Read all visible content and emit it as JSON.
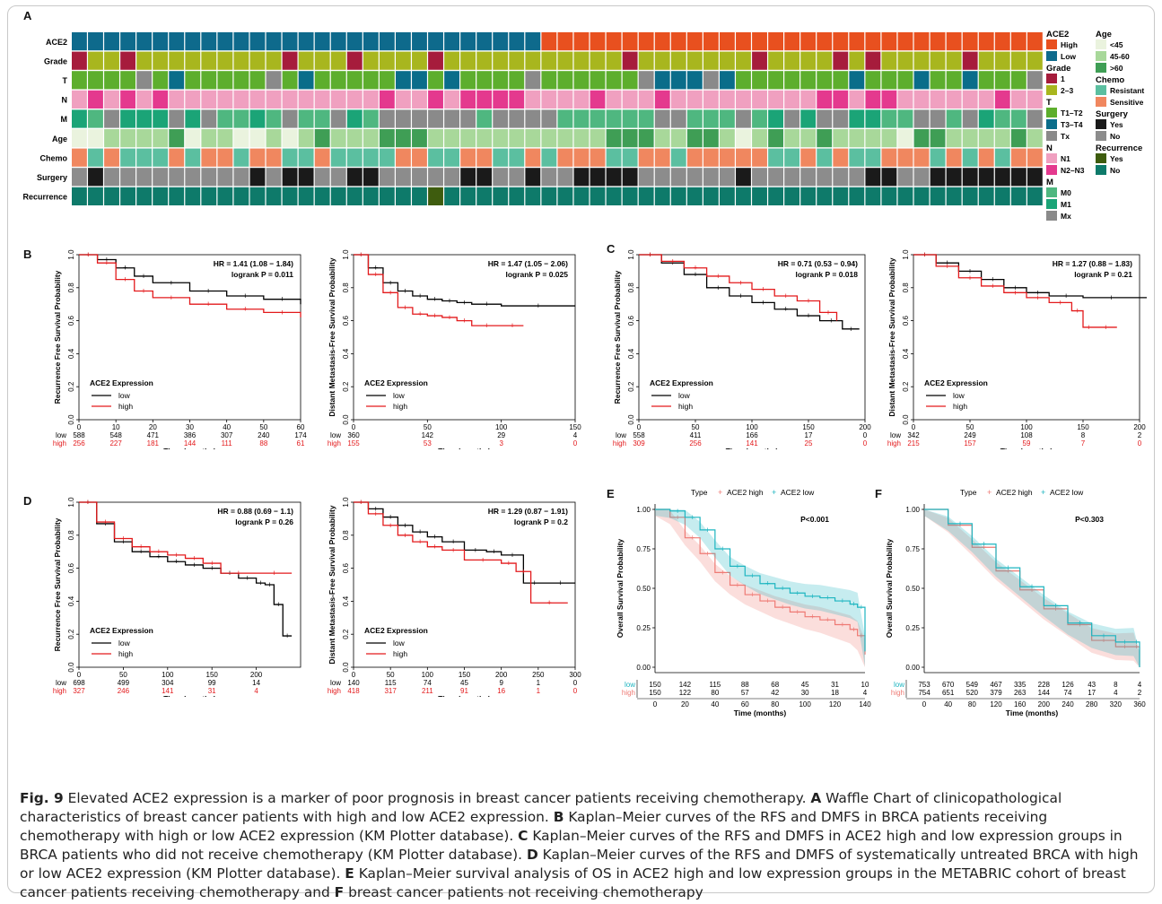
{
  "figure_label": "Fig. 9",
  "caption_parts": [
    {
      "text": " Elevated ACE2 expression is a marker of poor prognosis in breast cancer patients receiving chemotherapy. ",
      "bold": false
    },
    {
      "text": "A",
      "bold": true
    },
    {
      "text": " Waffle Chart of clinicopathological characteristics of breast cancer patients with high and low ACE2 expression. ",
      "bold": false
    },
    {
      "text": "B",
      "bold": true
    },
    {
      "text": " Kaplan–Meier curves of the RFS and DMFS in BRCA patients receiving chemotherapy with high or low ACE2 expression (KM Plotter database). ",
      "bold": false
    },
    {
      "text": "C",
      "bold": true
    },
    {
      "text": " Kaplan–Meier curves of the RFS and DMFS in ACE2 high and low expression groups in BRCA patients who did not receive chemotherapy (KM Plotter database). ",
      "bold": false
    },
    {
      "text": "D",
      "bold": true
    },
    {
      "text": " Kaplan–Meier curves of the RFS and DMFS of systematically untreated BRCA with high or low ACE2 expression (KM Plotter database). ",
      "bold": false
    },
    {
      "text": "E",
      "bold": true
    },
    {
      "text": " Kaplan–Meier survival analysis of OS in ACE2 high and low expression groups in the METABRIC cohort of breast cancer patients receiving chemotherapy and ",
      "bold": false
    },
    {
      "text": "F",
      "bold": true
    },
    {
      "text": " breast cancer patients not receiving chemotherapy",
      "bold": false
    }
  ],
  "panel_letters": {
    "A": "A",
    "B": "B",
    "C": "C",
    "D": "D",
    "E": "E",
    "F": "F"
  },
  "waffle": {
    "rows": [
      "ACE2",
      "Grade",
      "T",
      "N",
      "M",
      "Age",
      "Chemo",
      "Surgery",
      "Recurrence"
    ],
    "n_columns": 60,
    "legend": [
      {
        "title": "ACE2",
        "items": [
          {
            "label": "High",
            "color": "#E8501F"
          },
          {
            "label": "Low",
            "color": "#0E6A8C"
          }
        ]
      },
      {
        "title": "Grade",
        "items": [
          {
            "label": "1",
            "color": "#A61C3C"
          },
          {
            "label": "2–3",
            "color": "#A8B61E"
          }
        ]
      },
      {
        "title": "T",
        "items": [
          {
            "label": "T1–T2",
            "color": "#5DAE2D"
          },
          {
            "label": "T3–T4",
            "color": "#0A6D8A"
          },
          {
            "label": "Tx",
            "color": "#8A8A8A"
          }
        ]
      },
      {
        "title": "N",
        "items": [
          {
            "label": "N1",
            "color": "#F0A0C0"
          },
          {
            "label": "N2–N3",
            "color": "#E4398E"
          }
        ]
      },
      {
        "title": "M",
        "items": [
          {
            "label": "M0",
            "color": "#4FB780"
          },
          {
            "label": "M1",
            "color": "#1BA477"
          },
          {
            "label": "Mx",
            "color": "#8A8A8A"
          }
        ]
      },
      {
        "title": "Age",
        "items": [
          {
            "label": "<45",
            "color": "#EAF3DE"
          },
          {
            "label": "45-60",
            "color": "#A8D89A"
          },
          {
            "label": ">60",
            "color": "#3F9E55"
          }
        ]
      },
      {
        "title": "Chemo",
        "items": [
          {
            "label": "Resistant",
            "color": "#5BBFA0"
          },
          {
            "label": "Sensitive",
            "color": "#F0875F"
          }
        ]
      },
      {
        "title": "Surgery",
        "items": [
          {
            "label": "Yes",
            "color": "#1A1A1A"
          },
          {
            "label": "No",
            "color": "#8C8C8C"
          }
        ]
      },
      {
        "title": "Recurrence",
        "items": [
          {
            "label": "Yes",
            "color": "#3E5C0E"
          },
          {
            "label": "No",
            "color": "#0E7A6A"
          }
        ]
      }
    ]
  },
  "km_legend": {
    "title": "ACE2 Expression",
    "low": "low",
    "high": "high"
  },
  "risk_row_labels": {
    "low": "low",
    "high": "high"
  },
  "chart_data": [
    {
      "id": "B1",
      "type": "line",
      "ylabel": "Recurrence Free Survival Probability",
      "xlabel": "Time (months)",
      "hr": "HR = 1.41 (1.08 − 1.84)",
      "pval": "logrank P = 0.011",
      "xlim": [
        0,
        60
      ],
      "ylim": [
        0,
        1
      ],
      "xticks": [
        0,
        10,
        20,
        30,
        40,
        50,
        60
      ],
      "yticks": [
        0.0,
        0.2,
        0.4,
        0.6,
        0.8,
        1.0
      ],
      "series": [
        {
          "name": "low",
          "x": [
            0,
            5,
            10,
            15,
            20,
            30,
            40,
            50,
            60
          ],
          "y": [
            1.0,
            0.97,
            0.92,
            0.87,
            0.83,
            0.78,
            0.75,
            0.73,
            0.7
          ]
        },
        {
          "name": "high",
          "x": [
            0,
            5,
            10,
            15,
            20,
            30,
            40,
            50,
            60
          ],
          "y": [
            1.0,
            0.95,
            0.85,
            0.78,
            0.74,
            0.7,
            0.67,
            0.65,
            0.62
          ]
        }
      ],
      "risk_ticks": [
        0,
        10,
        20,
        30,
        40,
        50,
        60
      ],
      "risk_low": [
        "588",
        "548",
        "471",
        "386",
        "307",
        "240",
        "174"
      ],
      "risk_high": [
        "256",
        "227",
        "181",
        "144",
        "111",
        "88",
        "61"
      ]
    },
    {
      "id": "B2",
      "type": "line",
      "ylabel": "Distant Metastasis-Free Survival Probability",
      "xlabel": "Time (months)",
      "hr": "HR = 1.47 (1.05 − 2.06)",
      "pval": "logrank P = 0.025",
      "xlim": [
        0,
        150
      ],
      "ylim": [
        0,
        1
      ],
      "xticks": [
        0,
        50,
        100,
        150
      ],
      "yticks": [
        0.0,
        0.2,
        0.4,
        0.6,
        0.8,
        1.0
      ],
      "series": [
        {
          "name": "low",
          "x": [
            0,
            10,
            20,
            30,
            40,
            50,
            60,
            70,
            80,
            100,
            150
          ],
          "y": [
            1.0,
            0.92,
            0.83,
            0.78,
            0.75,
            0.73,
            0.72,
            0.71,
            0.7,
            0.69,
            0.69
          ]
        },
        {
          "name": "high",
          "x": [
            0,
            10,
            20,
            30,
            40,
            50,
            60,
            70,
            80,
            100,
            115
          ],
          "y": [
            1.0,
            0.88,
            0.77,
            0.68,
            0.64,
            0.63,
            0.62,
            0.6,
            0.57,
            0.57,
            0.57
          ]
        }
      ],
      "risk_ticks": [
        0,
        50,
        100,
        150
      ],
      "risk_low": [
        "360",
        "142",
        "29",
        "4"
      ],
      "risk_high": [
        "155",
        "53",
        "3",
        "0"
      ]
    },
    {
      "id": "C1",
      "type": "line",
      "ylabel": "Recurrence Free Survival Probability",
      "xlabel": "Time (months)",
      "hr": "HR = 0.71 (0.53 − 0.94)",
      "pval": "logrank P = 0.018",
      "xlim": [
        0,
        200
      ],
      "ylim": [
        0,
        1
      ],
      "xticks": [
        0,
        50,
        100,
        150,
        200
      ],
      "yticks": [
        0.0,
        0.2,
        0.4,
        0.6,
        0.8,
        1.0
      ],
      "series": [
        {
          "name": "low",
          "x": [
            0,
            20,
            40,
            60,
            80,
            100,
            120,
            140,
            160,
            180,
            195
          ],
          "y": [
            1.0,
            0.95,
            0.88,
            0.8,
            0.75,
            0.71,
            0.67,
            0.63,
            0.6,
            0.55,
            0.55
          ]
        },
        {
          "name": "high",
          "x": [
            0,
            20,
            40,
            60,
            80,
            100,
            120,
            140,
            160,
            175
          ],
          "y": [
            1.0,
            0.96,
            0.92,
            0.87,
            0.83,
            0.79,
            0.75,
            0.72,
            0.65,
            0.6
          ]
        }
      ],
      "risk_ticks": [
        0,
        50,
        100,
        150,
        200
      ],
      "risk_low": [
        "558",
        "411",
        "166",
        "17",
        "0"
      ],
      "risk_high": [
        "309",
        "256",
        "141",
        "25",
        "0"
      ]
    },
    {
      "id": "C2",
      "type": "line",
      "ylabel": "Distant Metastasis-Free Survival Probability",
      "xlabel": "Time (months)",
      "hr": "HR = 1.27 (0.88 − 1.83)",
      "pval": "logrank P = 0.21",
      "xlim": [
        0,
        200
      ],
      "ylim": [
        0,
        1
      ],
      "xticks": [
        0,
        50,
        100,
        150,
        200
      ],
      "yticks": [
        0.0,
        0.2,
        0.4,
        0.6,
        0.8,
        1.0
      ],
      "series": [
        {
          "name": "low",
          "x": [
            0,
            20,
            40,
            60,
            80,
            100,
            120,
            150,
            200,
            215
          ],
          "y": [
            1.0,
            0.95,
            0.9,
            0.85,
            0.8,
            0.77,
            0.75,
            0.74,
            0.74,
            0.74
          ]
        },
        {
          "name": "high",
          "x": [
            0,
            20,
            40,
            60,
            80,
            100,
            120,
            140,
            150,
            160,
            180
          ],
          "y": [
            1.0,
            0.93,
            0.86,
            0.81,
            0.77,
            0.74,
            0.71,
            0.66,
            0.56,
            0.56,
            0.56
          ]
        }
      ],
      "risk_ticks": [
        0,
        50,
        100,
        150,
        200
      ],
      "risk_low": [
        "342",
        "249",
        "108",
        "8",
        "2"
      ],
      "risk_high": [
        "215",
        "157",
        "59",
        "7",
        "0"
      ]
    },
    {
      "id": "D1",
      "type": "line",
      "ylabel": "Recurrence Free Survival Probability",
      "xlabel": "Time (months)",
      "hr": "HR = 0.88 (0.69 − 1.1)",
      "pval": "logrank P = 0.26",
      "xlim": [
        0,
        250
      ],
      "ylim": [
        0,
        1
      ],
      "xticks": [
        0,
        50,
        100,
        150,
        200
      ],
      "yticks": [
        0.0,
        0.2,
        0.4,
        0.6,
        0.8,
        1.0
      ],
      "series": [
        {
          "name": "low",
          "x": [
            0,
            20,
            40,
            60,
            80,
            100,
            120,
            140,
            160,
            180,
            200,
            210,
            220,
            230,
            240
          ],
          "y": [
            1.0,
            0.87,
            0.76,
            0.7,
            0.67,
            0.64,
            0.62,
            0.6,
            0.57,
            0.54,
            0.51,
            0.5,
            0.38,
            0.19,
            0.19
          ]
        },
        {
          "name": "high",
          "x": [
            0,
            20,
            40,
            60,
            80,
            100,
            120,
            140,
            160,
            200,
            240
          ],
          "y": [
            1.0,
            0.88,
            0.78,
            0.73,
            0.7,
            0.68,
            0.66,
            0.63,
            0.57,
            0.57,
            0.57
          ]
        }
      ],
      "risk_ticks": [
        0,
        50,
        100,
        150,
        200
      ],
      "risk_low": [
        "698",
        "499",
        "304",
        "99",
        "14"
      ],
      "risk_high": [
        "327",
        "246",
        "141",
        "31",
        "4"
      ]
    },
    {
      "id": "D2",
      "type": "line",
      "ylabel": "Distant Metastasis-Free Survival Probability",
      "xlabel": "Time (months)",
      "hr": "HR = 1.29 (0.87 − 1.91)",
      "pval": "logrank P = 0.2",
      "xlim": [
        0,
        300
      ],
      "ylim": [
        0,
        1
      ],
      "xticks": [
        0,
        50,
        100,
        150,
        200,
        250,
        300
      ],
      "yticks": [
        0.0,
        0.2,
        0.4,
        0.6,
        0.8,
        1.0
      ],
      "series": [
        {
          "name": "low",
          "x": [
            0,
            20,
            40,
            60,
            80,
            100,
            120,
            150,
            180,
            200,
            230,
            260,
            300
          ],
          "y": [
            1.0,
            0.96,
            0.91,
            0.86,
            0.82,
            0.79,
            0.76,
            0.71,
            0.7,
            0.68,
            0.51,
            0.51,
            0.51
          ]
        },
        {
          "name": "high",
          "x": [
            0,
            20,
            40,
            60,
            80,
            100,
            120,
            150,
            200,
            220,
            240,
            290
          ],
          "y": [
            1.0,
            0.93,
            0.86,
            0.8,
            0.76,
            0.73,
            0.71,
            0.65,
            0.63,
            0.58,
            0.39,
            0.39
          ]
        }
      ],
      "risk_ticks": [
        0,
        50,
        100,
        150,
        200,
        250,
        300
      ],
      "risk_low": [
        "140",
        "115",
        "74",
        "45",
        "9",
        "1",
        "0"
      ],
      "risk_high": [
        "418",
        "317",
        "211",
        "91",
        "16",
        "1",
        "0"
      ]
    },
    {
      "id": "E",
      "type": "line",
      "ylabel": "Overall Survival Probability",
      "xlabel": "Time (months)",
      "legend_type": "Type",
      "legend_high": "ACE2 high",
      "legend_low": "ACE2 low",
      "pval": "P<0.001",
      "xlim": [
        0,
        140
      ],
      "ylim": [
        0,
        1
      ],
      "xticks": [
        0,
        20,
        40,
        60,
        80,
        100,
        120,
        140
      ],
      "yticks": [
        "0.00",
        "0.25",
        "0.50",
        "0.75",
        "1.00"
      ],
      "series": [
        {
          "name": "ACE2 high",
          "x": [
            0,
            10,
            20,
            30,
            40,
            50,
            60,
            70,
            80,
            90,
            100,
            110,
            120,
            130,
            135,
            140
          ],
          "y": [
            1.0,
            0.95,
            0.82,
            0.72,
            0.6,
            0.52,
            0.46,
            0.42,
            0.38,
            0.35,
            0.32,
            0.3,
            0.27,
            0.24,
            0.2,
            0.08
          ]
        },
        {
          "name": "ACE2 low",
          "x": [
            0,
            10,
            20,
            30,
            40,
            50,
            60,
            70,
            80,
            90,
            100,
            110,
            120,
            130,
            135,
            140
          ],
          "y": [
            1.0,
            0.99,
            0.95,
            0.87,
            0.75,
            0.64,
            0.58,
            0.53,
            0.5,
            0.47,
            0.45,
            0.44,
            0.42,
            0.4,
            0.38,
            0.1
          ]
        }
      ],
      "risk_ticks": [
        0,
        20,
        40,
        60,
        80,
        100,
        120,
        140
      ],
      "risk_low": [
        "150",
        "142",
        "115",
        "88",
        "68",
        "45",
        "31",
        "10"
      ],
      "risk_high": [
        "150",
        "122",
        "80",
        "57",
        "42",
        "30",
        "18",
        "4"
      ]
    },
    {
      "id": "F",
      "type": "line",
      "ylabel": "Overall Survival Probability",
      "xlabel": "Time (months)",
      "legend_type": "Type",
      "legend_high": "ACE2 high",
      "legend_low": "ACE2 low",
      "pval": "P<0.303",
      "xlim": [
        0,
        360
      ],
      "ylim": [
        0,
        1
      ],
      "xticks": [
        0,
        40,
        80,
        120,
        160,
        200,
        240,
        280,
        320,
        360
      ],
      "yticks": [
        "0.00",
        "0.25",
        "0.50",
        "0.75",
        "1.00"
      ],
      "series": [
        {
          "name": "ACE2 high",
          "x": [
            0,
            40,
            80,
            120,
            160,
            200,
            240,
            280,
            320,
            350,
            360
          ],
          "y": [
            1.0,
            0.9,
            0.76,
            0.61,
            0.49,
            0.37,
            0.27,
            0.17,
            0.13,
            0.13,
            0.0
          ]
        },
        {
          "name": "ACE2 low",
          "x": [
            0,
            40,
            80,
            120,
            160,
            200,
            240,
            280,
            320,
            350,
            360
          ],
          "y": [
            1.0,
            0.91,
            0.78,
            0.63,
            0.51,
            0.39,
            0.28,
            0.2,
            0.16,
            0.16,
            0.0
          ]
        }
      ],
      "risk_ticks": [
        0,
        40,
        80,
        120,
        160,
        200,
        240,
        280,
        320,
        360
      ],
      "risk_low": [
        "753",
        "670",
        "549",
        "467",
        "335",
        "228",
        "126",
        "43",
        "8",
        "4"
      ],
      "risk_high": [
        "754",
        "651",
        "520",
        "379",
        "263",
        "144",
        "74",
        "17",
        "4",
        "2"
      ]
    }
  ]
}
